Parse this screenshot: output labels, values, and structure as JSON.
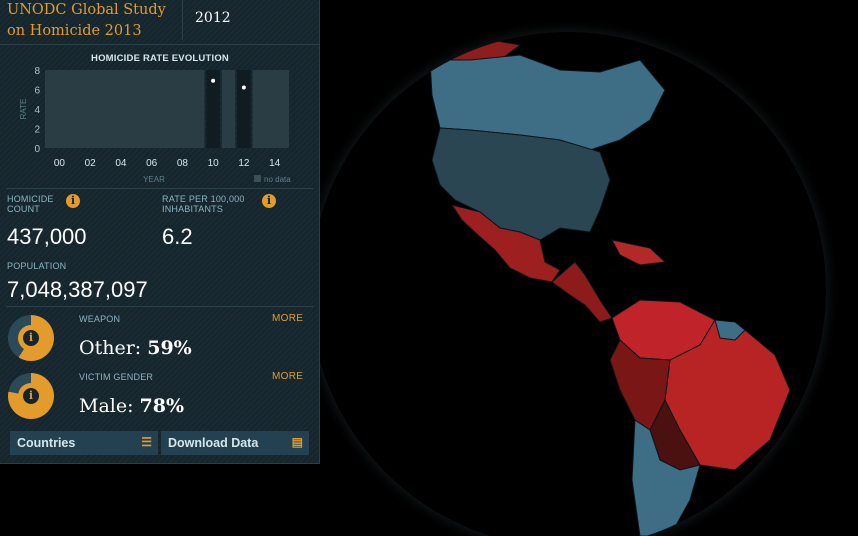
{
  "header": {
    "title": "UNODC Global Study\non Homicide 2013",
    "year": "2012"
  },
  "chart_data": {
    "type": "bar",
    "title": "HOMICIDE RATE EVOLUTION",
    "xlabel": "YEAR",
    "ylabel": "RATE",
    "x_ticks": [
      "00",
      "02",
      "04",
      "06",
      "08",
      "10",
      "12",
      "14"
    ],
    "y_ticks": [
      "0",
      "2",
      "4",
      "6",
      "8"
    ],
    "ylim": [
      0,
      8
    ],
    "legend": "no data",
    "points": [
      {
        "x": 2010,
        "y": 6.9
      },
      {
        "x": 2012,
        "y": 6.2
      }
    ]
  },
  "stats": {
    "count_label": "HOMICIDE\nCOUNT",
    "count_value": "437,000",
    "rate_label": "RATE PER 100,000\nINHABITANTS",
    "rate_value": "6.2",
    "population_label": "POPULATION",
    "population_value": "7,048,387,097"
  },
  "weapon": {
    "label": "WEAPON",
    "more": "MORE",
    "value_name": "Other: ",
    "value_pct": "59%",
    "fraction": 0.59,
    "info_glyph": "i"
  },
  "gender": {
    "label": "VICTIM GENDER",
    "more": "MORE",
    "value_name": "Male: ",
    "value_pct": "78%",
    "fraction": 0.78,
    "info_glyph": "i"
  },
  "buttons": {
    "countries": "Countries",
    "download": "Download Data"
  },
  "icons": {
    "info": "i",
    "countries": "list-icon",
    "download": "document-icon"
  },
  "colors": {
    "accent": "#e39b2c",
    "high": "#b01c1c",
    "low": "#3d6e85",
    "ocean": "#000000"
  }
}
